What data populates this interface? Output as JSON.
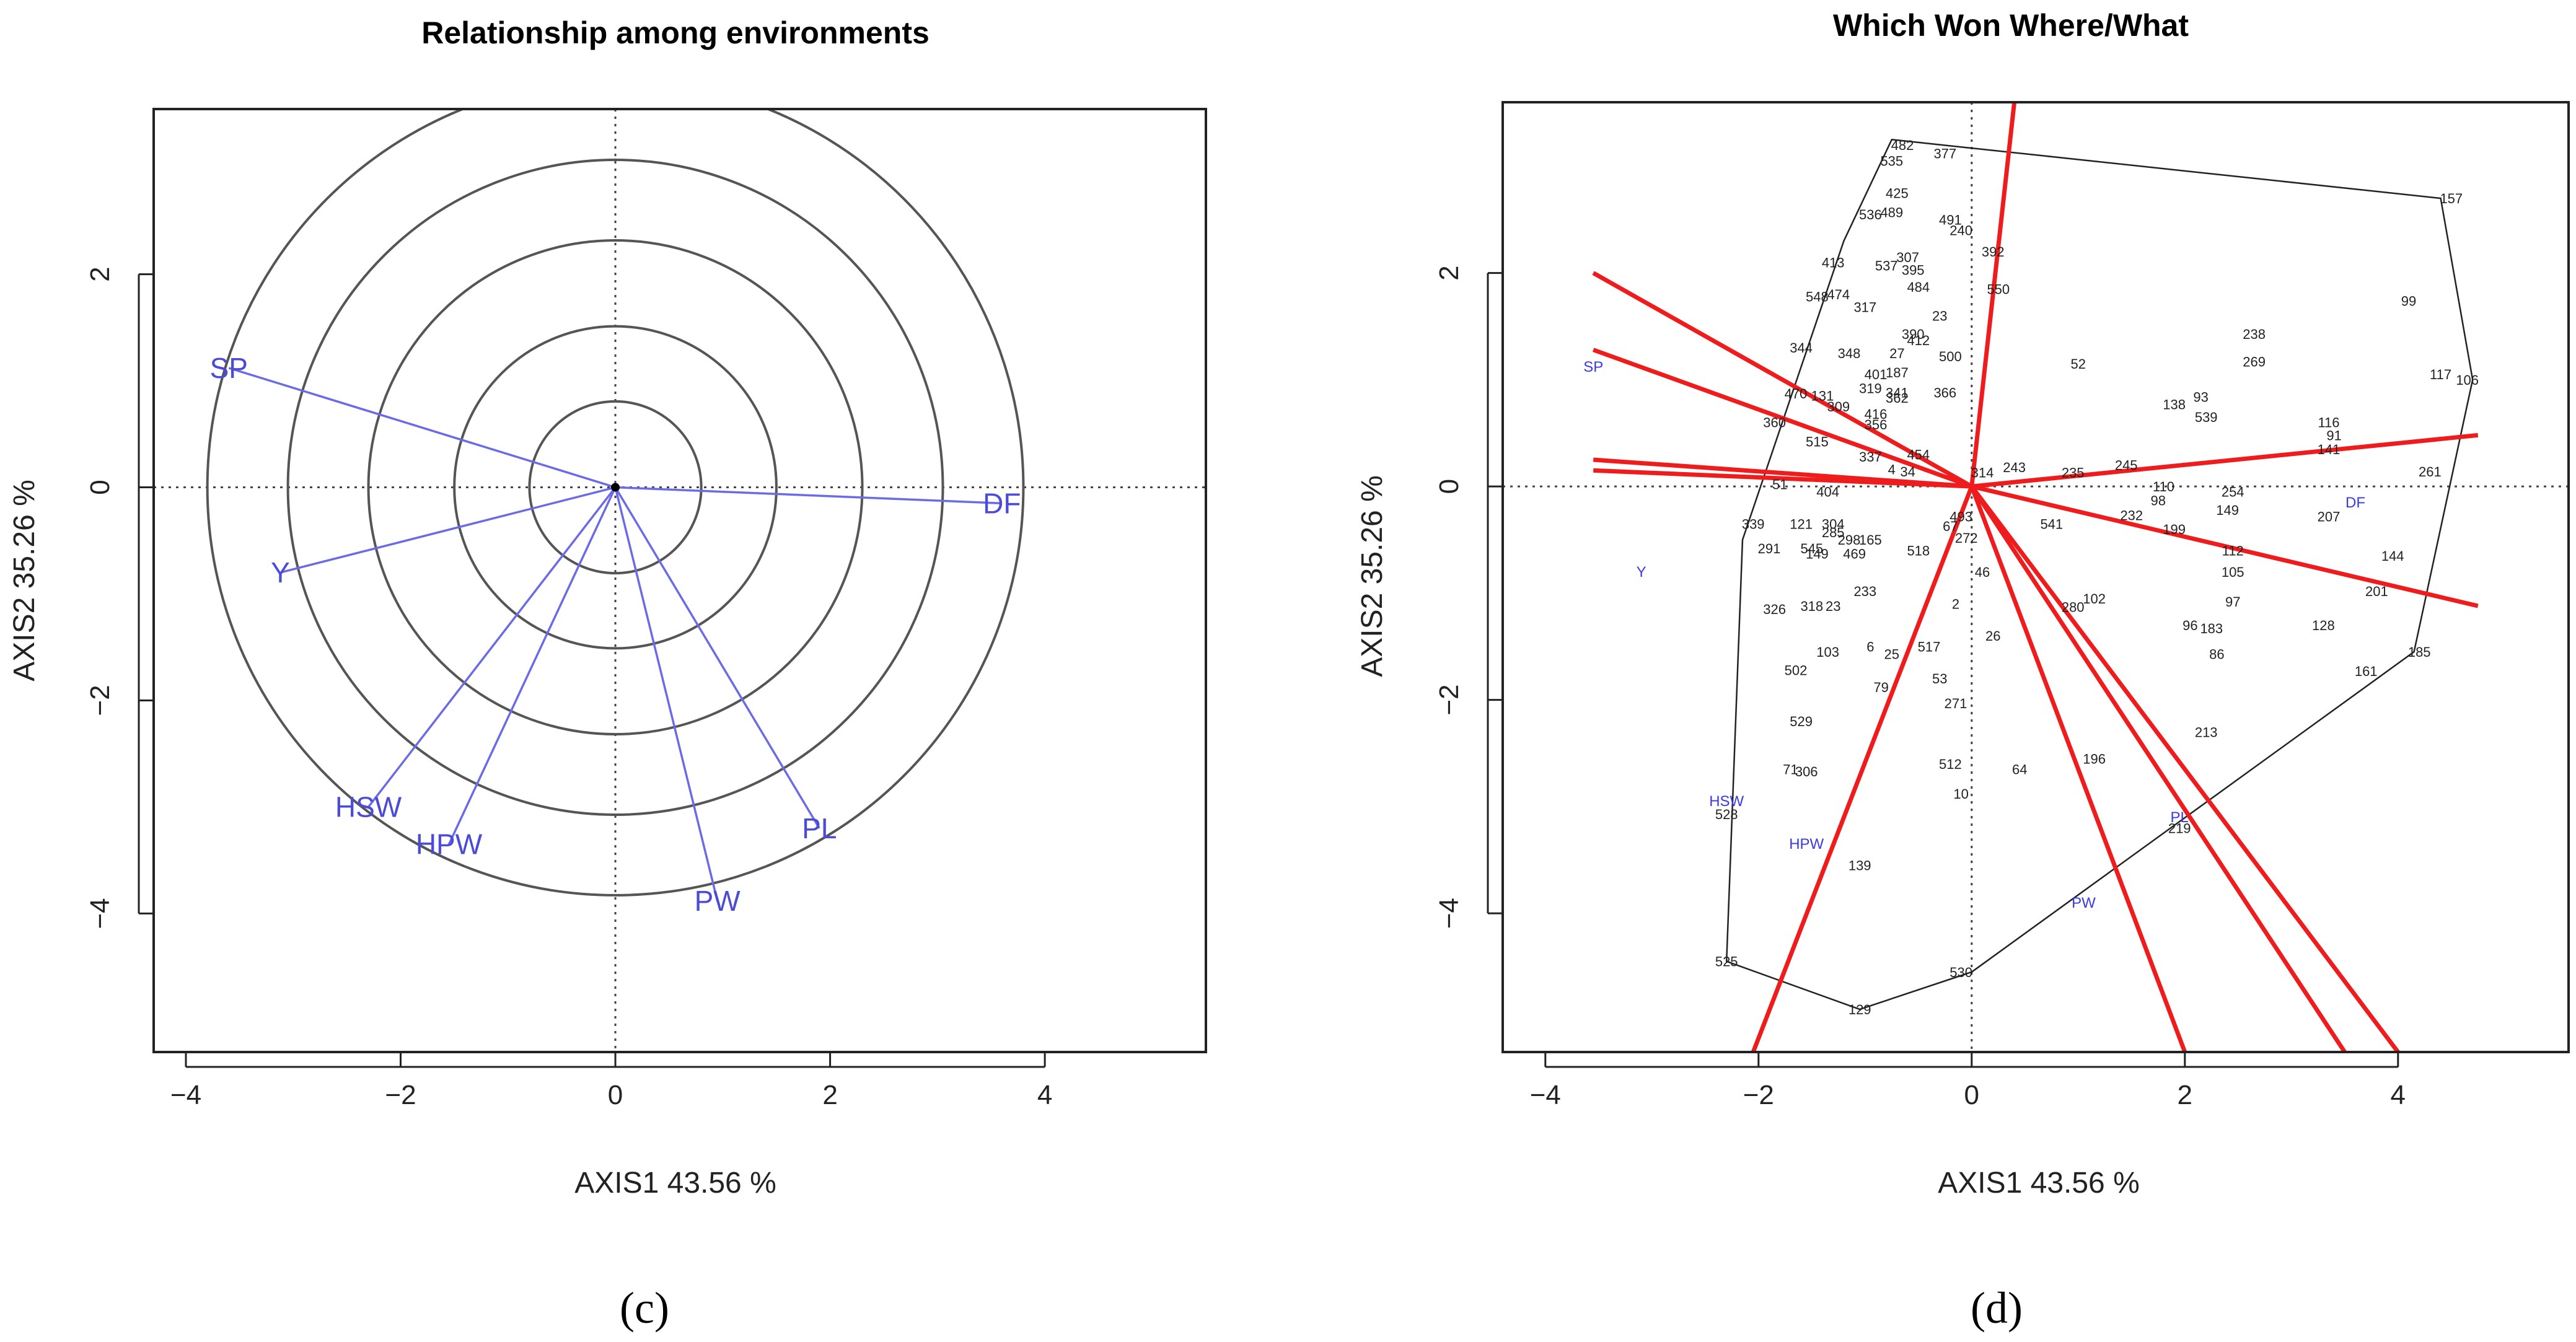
{
  "chart_data": [
    {
      "panel": "(c)",
      "type": "scatter",
      "title": "Relationship among environments",
      "xlabel": "AXIS1 43.56 %",
      "ylabel": "AXIS2 35.26 %",
      "xlim": [
        -4.3,
        5.5
      ],
      "ylim": [
        -5.3,
        3.55
      ],
      "xticks": [
        "−4",
        "−2",
        "0",
        "2",
        "4"
      ],
      "yticks": [
        "−4",
        "−2",
        "0",
        "2"
      ],
      "xtick_values": [
        -4,
        -2,
        0,
        2,
        4
      ],
      "ytick_values": [
        -4,
        -2,
        0,
        2
      ],
      "circle_radii": [
        0.8,
        1.5,
        2.3,
        3.05,
        3.8
      ],
      "vectors": [
        {
          "name": "SP",
          "x": -3.6,
          "y": 1.12
        },
        {
          "name": "Y",
          "x": -3.12,
          "y": -0.8
        },
        {
          "name": "HSW",
          "x": -2.3,
          "y": -3.0
        },
        {
          "name": "HPW",
          "x": -1.55,
          "y": -3.35
        },
        {
          "name": "PW",
          "x": 0.95,
          "y": -3.88
        },
        {
          "name": "PL",
          "x": 1.9,
          "y": -3.2
        },
        {
          "name": "DF",
          "x": 3.6,
          "y": -0.15
        }
      ]
    },
    {
      "panel": "(d)",
      "type": "scatter",
      "title": "Which Won Where/What",
      "xlabel": "AXIS1 43.56 %",
      "ylabel": "AXIS2 35.26 %",
      "xlim": [
        -4.4,
        5.6
      ],
      "ylim": [
        -5.3,
        3.6
      ],
      "xticks": [
        "−4",
        "−2",
        "0",
        "2",
        "4"
      ],
      "yticks": [
        "−4",
        "−2",
        "0",
        "2"
      ],
      "xtick_values": [
        -4,
        -2,
        0,
        2,
        4
      ],
      "ytick_values": [
        -4,
        -2,
        0,
        2
      ],
      "hull": [
        [
          -0.75,
          3.25
        ],
        [
          4.4,
          2.7
        ],
        [
          4.7,
          1.0
        ],
        [
          4.15,
          -1.55
        ],
        [
          0.0,
          -4.55
        ],
        [
          -1.05,
          -4.9
        ],
        [
          -2.3,
          -4.45
        ],
        [
          -2.15,
          -0.5
        ],
        [
          -1.2,
          2.3
        ]
      ],
      "sector_rays": [
        [
          0.4,
          3.6
        ],
        [
          -3.55,
          2.0
        ],
        [
          -3.55,
          1.28
        ],
        [
          -3.55,
          0.25
        ],
        [
          -3.55,
          0.15
        ],
        [
          -2.05,
          -5.3
        ],
        [
          2.0,
          -5.3
        ],
        [
          3.5,
          -5.3
        ],
        [
          4.0,
          -5.3
        ],
        [
          4.75,
          -1.12
        ],
        [
          4.75,
          0.48
        ]
      ],
      "environments": [
        {
          "name": "SP",
          "x": -3.55,
          "y": 1.12
        },
        {
          "name": "Y",
          "x": -3.1,
          "y": -0.8
        },
        {
          "name": "HSW",
          "x": -2.3,
          "y": -2.95
        },
        {
          "name": "HPW",
          "x": -1.55,
          "y": -3.35
        },
        {
          "name": "PL",
          "x": 1.95,
          "y": -3.1
        },
        {
          "name": "PW",
          "x": 1.05,
          "y": -3.9
        },
        {
          "name": "DF",
          "x": 3.6,
          "y": -0.15
        }
      ],
      "genotypes": [
        {
          "label": "482",
          "x": -0.65,
          "y": 3.2
        },
        {
          "label": "377",
          "x": -0.25,
          "y": 3.12
        },
        {
          "label": "535",
          "x": -0.75,
          "y": 3.05
        },
        {
          "label": "425",
          "x": -0.7,
          "y": 2.75
        },
        {
          "label": "536",
          "x": -0.95,
          "y": 2.55
        },
        {
          "label": "489",
          "x": -0.75,
          "y": 2.57
        },
        {
          "label": "491",
          "x": -0.2,
          "y": 2.5
        },
        {
          "label": "240",
          "x": -0.1,
          "y": 2.4
        },
        {
          "label": "392",
          "x": 0.2,
          "y": 2.2
        },
        {
          "label": "307",
          "x": -0.6,
          "y": 2.15
        },
        {
          "label": "413",
          "x": -1.3,
          "y": 2.1
        },
        {
          "label": "537",
          "x": -0.8,
          "y": 2.07
        },
        {
          "label": "395",
          "x": -0.55,
          "y": 2.03
        },
        {
          "label": "484",
          "x": -0.5,
          "y": 1.87
        },
        {
          "label": "550",
          "x": 0.25,
          "y": 1.85
        },
        {
          "label": "548",
          "x": -1.45,
          "y": 1.78
        },
        {
          "label": "474",
          "x": -1.25,
          "y": 1.8
        },
        {
          "label": "317",
          "x": -1.0,
          "y": 1.68
        },
        {
          "label": "23",
          "x": -0.3,
          "y": 1.6
        },
        {
          "label": "390",
          "x": -0.55,
          "y": 1.43
        },
        {
          "label": "412",
          "x": -0.5,
          "y": 1.37
        },
        {
          "label": "344",
          "x": -1.6,
          "y": 1.3
        },
        {
          "label": "348",
          "x": -1.15,
          "y": 1.25
        },
        {
          "label": "27",
          "x": -0.7,
          "y": 1.25
        },
        {
          "label": "500",
          "x": -0.2,
          "y": 1.22
        },
        {
          "label": "52",
          "x": 1.0,
          "y": 1.15
        },
        {
          "label": "238",
          "x": 2.65,
          "y": 1.43
        },
        {
          "label": "99",
          "x": 4.1,
          "y": 1.74
        },
        {
          "label": "157",
          "x": 4.5,
          "y": 2.7
        },
        {
          "label": "269",
          "x": 2.65,
          "y": 1.17
        },
        {
          "label": "117",
          "x": 4.4,
          "y": 1.05
        },
        {
          "label": "106",
          "x": 4.65,
          "y": 1.0
        },
        {
          "label": "401",
          "x": -0.9,
          "y": 1.05
        },
        {
          "label": "187",
          "x": -0.7,
          "y": 1.07
        },
        {
          "label": "319",
          "x": -0.95,
          "y": 0.92
        },
        {
          "label": "341",
          "x": -0.7,
          "y": 0.88
        },
        {
          "label": "362",
          "x": -0.7,
          "y": 0.83
        },
        {
          "label": "366",
          "x": -0.25,
          "y": 0.88
        },
        {
          "label": "93",
          "x": 2.15,
          "y": 0.84
        },
        {
          "label": "138",
          "x": 1.9,
          "y": 0.77
        },
        {
          "label": "539",
          "x": 2.2,
          "y": 0.65
        },
        {
          "label": "470",
          "x": -1.65,
          "y": 0.87
        },
        {
          "label": "131",
          "x": -1.4,
          "y": 0.85
        },
        {
          "label": "309",
          "x": -1.25,
          "y": 0.75
        },
        {
          "label": "416",
          "x": -0.9,
          "y": 0.68
        },
        {
          "label": "360",
          "x": -1.85,
          "y": 0.6
        },
        {
          "label": "356",
          "x": -0.9,
          "y": 0.58
        },
        {
          "label": "116",
          "x": 3.35,
          "y": 0.6
        },
        {
          "label": "91",
          "x": 3.4,
          "y": 0.48
        },
        {
          "label": "141",
          "x": 3.35,
          "y": 0.35
        },
        {
          "label": "515",
          "x": -1.45,
          "y": 0.42
        },
        {
          "label": "337",
          "x": -0.95,
          "y": 0.28
        },
        {
          "label": "454",
          "x": -0.5,
          "y": 0.3
        },
        {
          "label": "245",
          "x": 1.45,
          "y": 0.2
        },
        {
          "label": "243",
          "x": 0.4,
          "y": 0.18
        },
        {
          "label": "314",
          "x": 0.1,
          "y": 0.13
        },
        {
          "label": "235",
          "x": 0.95,
          "y": 0.13
        },
        {
          "label": "4",
          "x": -0.75,
          "y": 0.16
        },
        {
          "label": "34",
          "x": -0.6,
          "y": 0.14
        },
        {
          "label": "261",
          "x": 4.3,
          "y": 0.14
        },
        {
          "label": "51",
          "x": -1.8,
          "y": 0.02
        },
        {
          "label": "404",
          "x": -1.35,
          "y": -0.05
        },
        {
          "label": "110",
          "x": 1.8,
          "y": 0.0
        },
        {
          "label": "254",
          "x": 2.45,
          "y": -0.05
        },
        {
          "label": "98",
          "x": 1.75,
          "y": -0.13
        },
        {
          "label": "149",
          "x": 2.4,
          "y": -0.22
        },
        {
          "label": "207",
          "x": 3.35,
          "y": -0.28
        },
        {
          "label": "232",
          "x": 1.5,
          "y": -0.27
        },
        {
          "label": "541",
          "x": 0.75,
          "y": -0.35
        },
        {
          "label": "199",
          "x": 1.9,
          "y": -0.4
        },
        {
          "label": "493",
          "x": -0.1,
          "y": -0.28
        },
        {
          "label": "339",
          "x": -2.05,
          "y": -0.35
        },
        {
          "label": "121",
          "x": -1.6,
          "y": -0.35
        },
        {
          "label": "304",
          "x": -1.3,
          "y": -0.35
        },
        {
          "label": "67",
          "x": -0.2,
          "y": -0.37
        },
        {
          "label": "272",
          "x": -0.05,
          "y": -0.48
        },
        {
          "label": "285",
          "x": -1.3,
          "y": -0.43
        },
        {
          "label": "298",
          "x": -1.15,
          "y": -0.5
        },
        {
          "label": "165",
          "x": -0.95,
          "y": -0.5
        },
        {
          "label": "518",
          "x": -0.5,
          "y": -0.6
        },
        {
          "label": "112",
          "x": 2.45,
          "y": -0.6
        },
        {
          "label": "144",
          "x": 3.95,
          "y": -0.65
        },
        {
          "label": "291",
          "x": -1.9,
          "y": -0.58
        },
        {
          "label": "545",
          "x": -1.5,
          "y": -0.58
        },
        {
          "label": "149",
          "x": -1.45,
          "y": -0.63
        },
        {
          "label": "469",
          "x": -1.1,
          "y": -0.63
        },
        {
          "label": "46",
          "x": 0.1,
          "y": -0.8
        },
        {
          "label": "105",
          "x": 2.45,
          "y": -0.8
        },
        {
          "label": "233",
          "x": -1.0,
          "y": -0.98
        },
        {
          "label": "102",
          "x": 1.15,
          "y": -1.05
        },
        {
          "label": "201",
          "x": 3.8,
          "y": -0.98
        },
        {
          "label": "97",
          "x": 2.45,
          "y": -1.08
        },
        {
          "label": "326",
          "x": -1.85,
          "y": -1.15
        },
        {
          "label": "318",
          "x": -1.5,
          "y": -1.12
        },
        {
          "label": "23",
          "x": -1.3,
          "y": -1.12
        },
        {
          "label": "2",
          "x": -0.15,
          "y": -1.1
        },
        {
          "label": "280",
          "x": 0.95,
          "y": -1.13
        },
        {
          "label": "96",
          "x": 2.05,
          "y": -1.3
        },
        {
          "label": "183",
          "x": 2.25,
          "y": -1.33
        },
        {
          "label": "128",
          "x": 3.3,
          "y": -1.3
        },
        {
          "label": "26",
          "x": 0.2,
          "y": -1.4
        },
        {
          "label": "103",
          "x": -1.35,
          "y": -1.55
        },
        {
          "label": "6",
          "x": -0.95,
          "y": -1.5
        },
        {
          "label": "25",
          "x": -0.75,
          "y": -1.57
        },
        {
          "label": "517",
          "x": -0.4,
          "y": -1.5
        },
        {
          "label": "86",
          "x": 2.3,
          "y": -1.57
        },
        {
          "label": "185",
          "x": 4.2,
          "y": -1.55
        },
        {
          "label": "161",
          "x": 3.7,
          "y": -1.73
        },
        {
          "label": "502",
          "x": -1.65,
          "y": -1.72
        },
        {
          "label": "53",
          "x": -0.3,
          "y": -1.8
        },
        {
          "label": "79",
          "x": -0.85,
          "y": -1.88
        },
        {
          "label": "271",
          "x": -0.15,
          "y": -2.03
        },
        {
          "label": "529",
          "x": -1.6,
          "y": -2.2
        },
        {
          "label": "213",
          "x": 2.2,
          "y": -2.3
        },
        {
          "label": "196",
          "x": 1.15,
          "y": -2.55
        },
        {
          "label": "512",
          "x": -0.2,
          "y": -2.6
        },
        {
          "label": "64",
          "x": 0.45,
          "y": -2.65
        },
        {
          "label": "71",
          "x": -1.7,
          "y": -2.65
        },
        {
          "label": "306",
          "x": -1.55,
          "y": -2.67
        },
        {
          "label": "10",
          "x": -0.1,
          "y": -2.88
        },
        {
          "label": "528",
          "x": -2.3,
          "y": -3.07
        },
        {
          "label": "219",
          "x": 1.95,
          "y": -3.2
        },
        {
          "label": "139",
          "x": -1.05,
          "y": -3.55
        },
        {
          "label": "525",
          "x": -2.3,
          "y": -4.45
        },
        {
          "label": "530",
          "x": -0.1,
          "y": -4.55
        },
        {
          "label": "129",
          "x": -1.05,
          "y": -4.9
        }
      ]
    }
  ],
  "panel_labels": {
    "c": "(c)",
    "d": "(d)"
  }
}
